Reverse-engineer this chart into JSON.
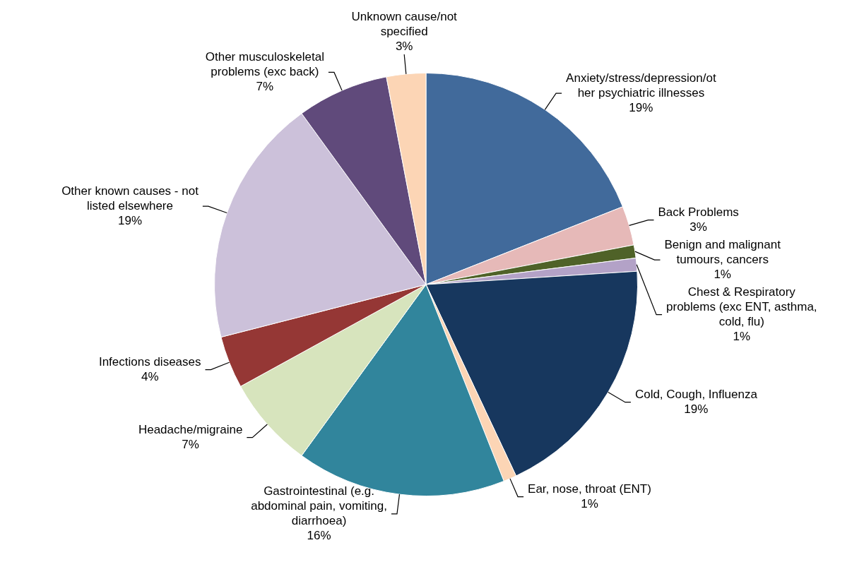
{
  "chart_data": {
    "type": "pie",
    "categories": [
      "Anxiety/stress/depression/other psychiatric illnesses",
      "Back Problems",
      "Benign and malignant tumours, cancers",
      "Chest & Respiratory problems (exc ENT, asthma, cold, flu)",
      "Cold, Cough, Influenza",
      "Ear, nose, throat (ENT)",
      "Gastrointestinal (e.g. abdominal pain, vomiting, diarrhoea)",
      "Headache/migraine",
      "Infections diseases",
      "Other known causes - not listed elsewhere",
      "Other musculoskeletal problems (exc back)",
      "Unknown cause/not specified"
    ],
    "values": [
      19,
      3,
      1,
      1,
      19,
      1,
      16,
      7,
      4,
      19,
      7,
      3
    ],
    "value_labels": [
      "19%",
      "3%",
      "1%",
      "1%",
      "19%",
      "1%",
      "16%",
      "7%",
      "4%",
      "19%",
      "7%",
      "3%"
    ],
    "colors": [
      "#416a9b",
      "#e6b9b8",
      "#4f6228",
      "#b3a2c7",
      "#17375e",
      "#fcd5b5",
      "#31859c",
      "#d7e4bd",
      "#953735",
      "#ccc1da",
      "#604a7b",
      "#fcd5b5"
    ],
    "legend": false
  }
}
